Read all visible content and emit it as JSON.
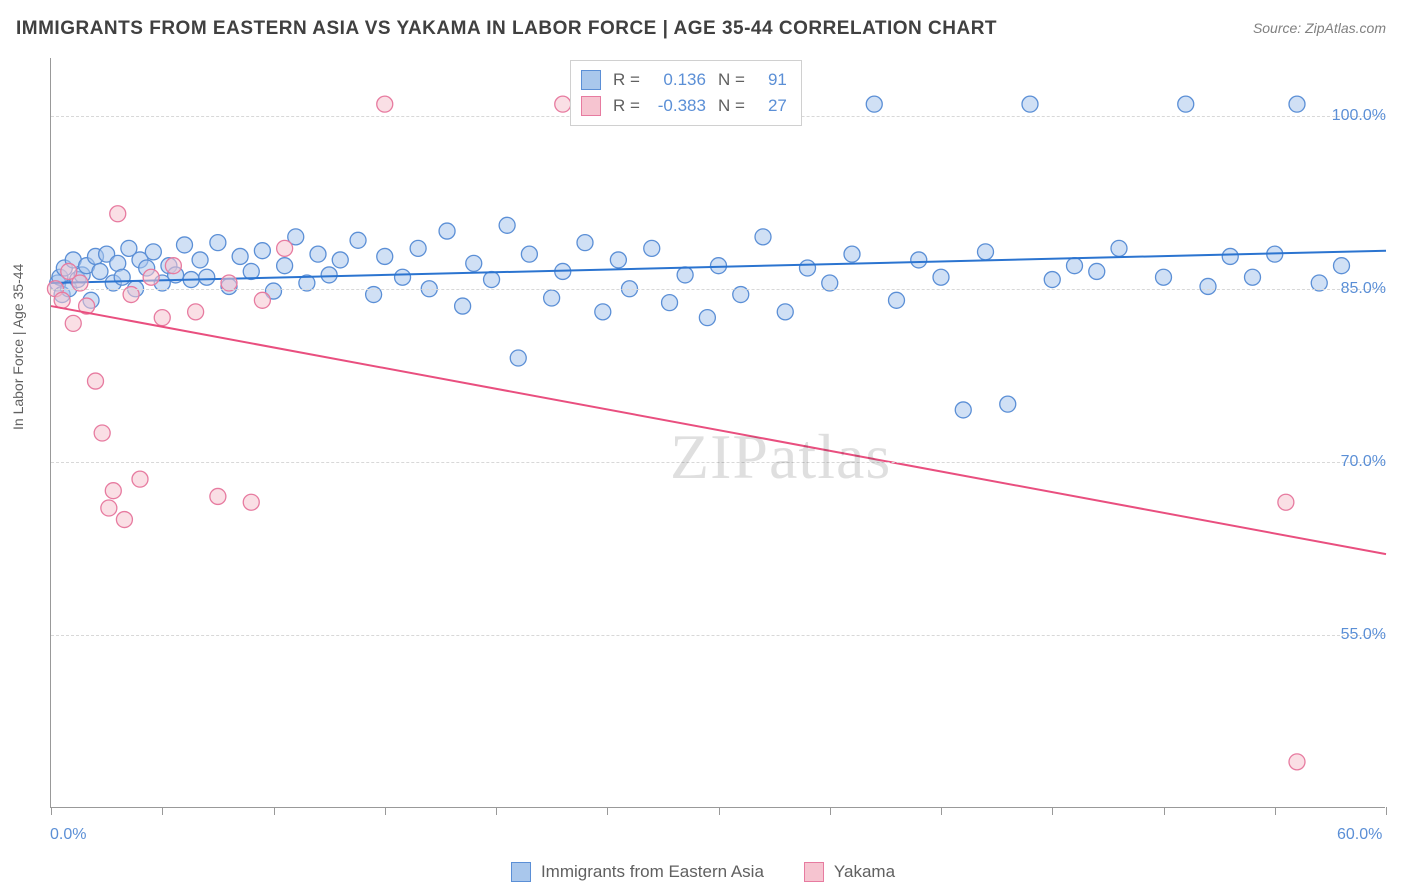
{
  "title": "IMMIGRANTS FROM EASTERN ASIA VS YAKAMA IN LABOR FORCE | AGE 35-44 CORRELATION CHART",
  "source": "Source: ZipAtlas.com",
  "watermark": "ZIPatlas",
  "ylabel": "In Labor Force | Age 35-44",
  "chart": {
    "type": "scatter",
    "background_color": "#ffffff",
    "grid_color": "#d8d8d8",
    "axis_color": "#999999",
    "tick_label_color": "#5b8fd6",
    "label_fontsize": 14,
    "tick_fontsize": 16,
    "xlim": [
      0,
      60
    ],
    "ylim": [
      40,
      105
    ],
    "x_ticks": [
      0,
      5,
      10,
      15,
      20,
      25,
      30,
      35,
      40,
      45,
      50,
      55,
      60
    ],
    "x_tick_labels": {
      "0": "0.0%",
      "60": "60.0%"
    },
    "y_ticks": [
      55,
      70,
      85,
      100
    ],
    "y_tick_labels": [
      "55.0%",
      "70.0%",
      "85.0%",
      "100.0%"
    ],
    "marker_radius": 8,
    "marker_opacity": 0.55,
    "line_width": 2,
    "series": [
      {
        "name": "Immigrants from Eastern Asia",
        "color_fill": "#a9c7ec",
        "color_stroke": "#5b8fd6",
        "line_color": "#2b74d0",
        "R": "0.136",
        "N": "91",
        "regression": {
          "x1": 0,
          "y1": 85.5,
          "x2": 60,
          "y2": 88.3
        },
        "points": [
          [
            0.3,
            85.5
          ],
          [
            0.4,
            86.0
          ],
          [
            0.5,
            84.5
          ],
          [
            0.6,
            86.8
          ],
          [
            0.8,
            85.0
          ],
          [
            1.0,
            87.5
          ],
          [
            1.2,
            85.8
          ],
          [
            1.4,
            86.2
          ],
          [
            1.6,
            87.0
          ],
          [
            1.8,
            84.0
          ],
          [
            2.0,
            87.8
          ],
          [
            2.2,
            86.5
          ],
          [
            2.5,
            88.0
          ],
          [
            2.8,
            85.5
          ],
          [
            3.0,
            87.2
          ],
          [
            3.2,
            86.0
          ],
          [
            3.5,
            88.5
          ],
          [
            3.8,
            85.0
          ],
          [
            4.0,
            87.5
          ],
          [
            4.3,
            86.8
          ],
          [
            4.6,
            88.2
          ],
          [
            5.0,
            85.5
          ],
          [
            5.3,
            87.0
          ],
          [
            5.6,
            86.2
          ],
          [
            6.0,
            88.8
          ],
          [
            6.3,
            85.8
          ],
          [
            6.7,
            87.5
          ],
          [
            7.0,
            86.0
          ],
          [
            7.5,
            89.0
          ],
          [
            8.0,
            85.2
          ],
          [
            8.5,
            87.8
          ],
          [
            9.0,
            86.5
          ],
          [
            9.5,
            88.3
          ],
          [
            10.0,
            84.8
          ],
          [
            10.5,
            87.0
          ],
          [
            11.0,
            89.5
          ],
          [
            11.5,
            85.5
          ],
          [
            12.0,
            88.0
          ],
          [
            12.5,
            86.2
          ],
          [
            13.0,
            87.5
          ],
          [
            13.8,
            89.2
          ],
          [
            14.5,
            84.5
          ],
          [
            15.0,
            87.8
          ],
          [
            15.8,
            86.0
          ],
          [
            16.5,
            88.5
          ],
          [
            17.0,
            85.0
          ],
          [
            17.8,
            90.0
          ],
          [
            18.5,
            83.5
          ],
          [
            19.0,
            87.2
          ],
          [
            19.8,
            85.8
          ],
          [
            20.5,
            90.5
          ],
          [
            21.0,
            79.0
          ],
          [
            21.5,
            88.0
          ],
          [
            22.5,
            84.2
          ],
          [
            23.0,
            86.5
          ],
          [
            24.0,
            89.0
          ],
          [
            24.8,
            83.0
          ],
          [
            25.5,
            87.5
          ],
          [
            26.0,
            85.0
          ],
          [
            27.0,
            88.5
          ],
          [
            27.8,
            83.8
          ],
          [
            28.5,
            86.2
          ],
          [
            29.5,
            82.5
          ],
          [
            30.0,
            87.0
          ],
          [
            31.0,
            84.5
          ],
          [
            32.0,
            89.5
          ],
          [
            33.0,
            83.0
          ],
          [
            34.0,
            86.8
          ],
          [
            35.0,
            85.5
          ],
          [
            36.0,
            88.0
          ],
          [
            37.0,
            101.0
          ],
          [
            38.0,
            84.0
          ],
          [
            39.0,
            87.5
          ],
          [
            40.0,
            86.0
          ],
          [
            41.0,
            74.5
          ],
          [
            42.0,
            88.2
          ],
          [
            43.0,
            75.0
          ],
          [
            44.0,
            101.0
          ],
          [
            45.0,
            85.8
          ],
          [
            46.0,
            87.0
          ],
          [
            47.0,
            86.5
          ],
          [
            48.0,
            88.5
          ],
          [
            50.0,
            86.0
          ],
          [
            51.0,
            101.0
          ],
          [
            52.0,
            85.2
          ],
          [
            53.0,
            87.8
          ],
          [
            54.0,
            86.0
          ],
          [
            55.0,
            88.0
          ],
          [
            56.0,
            101.0
          ],
          [
            57.0,
            85.5
          ],
          [
            58.0,
            87.0
          ]
        ]
      },
      {
        "name": "Yakama",
        "color_fill": "#f6c4d0",
        "color_stroke": "#e77ba0",
        "line_color": "#e94f7f",
        "R": "-0.383",
        "N": "27",
        "regression": {
          "x1": 0,
          "y1": 83.5,
          "x2": 60,
          "y2": 62.0
        },
        "points": [
          [
            0.2,
            85.0
          ],
          [
            0.5,
            84.0
          ],
          [
            0.8,
            86.5
          ],
          [
            1.0,
            82.0
          ],
          [
            1.3,
            85.5
          ],
          [
            1.6,
            83.5
          ],
          [
            2.0,
            77.0
          ],
          [
            2.3,
            72.5
          ],
          [
            2.6,
            66.0
          ],
          [
            2.8,
            67.5
          ],
          [
            3.0,
            91.5
          ],
          [
            3.3,
            65.0
          ],
          [
            3.6,
            84.5
          ],
          [
            4.0,
            68.5
          ],
          [
            4.5,
            86.0
          ],
          [
            5.0,
            82.5
          ],
          [
            5.5,
            87.0
          ],
          [
            6.5,
            83.0
          ],
          [
            7.5,
            67.0
          ],
          [
            8.0,
            85.5
          ],
          [
            9.0,
            66.5
          ],
          [
            9.5,
            84.0
          ],
          [
            10.5,
            88.5
          ],
          [
            15.0,
            101.0
          ],
          [
            23.0,
            101.0
          ],
          [
            55.5,
            66.5
          ],
          [
            56.0,
            44.0
          ]
        ]
      }
    ]
  },
  "stat_legend": {
    "rows": [
      {
        "swatch_fill": "#a9c7ec",
        "swatch_stroke": "#5b8fd6",
        "r_label": "R =",
        "r_value": "0.136",
        "n_label": "N =",
        "n_value": "91"
      },
      {
        "swatch_fill": "#f6c4d0",
        "swatch_stroke": "#e77ba0",
        "r_label": "R =",
        "r_value": "-0.383",
        "n_label": "N =",
        "n_value": "27"
      }
    ]
  },
  "bottom_legend": {
    "items": [
      {
        "swatch_fill": "#a9c7ec",
        "swatch_stroke": "#5b8fd6",
        "label": "Immigrants from Eastern Asia"
      },
      {
        "swatch_fill": "#f6c4d0",
        "swatch_stroke": "#e77ba0",
        "label": "Yakama"
      }
    ]
  }
}
